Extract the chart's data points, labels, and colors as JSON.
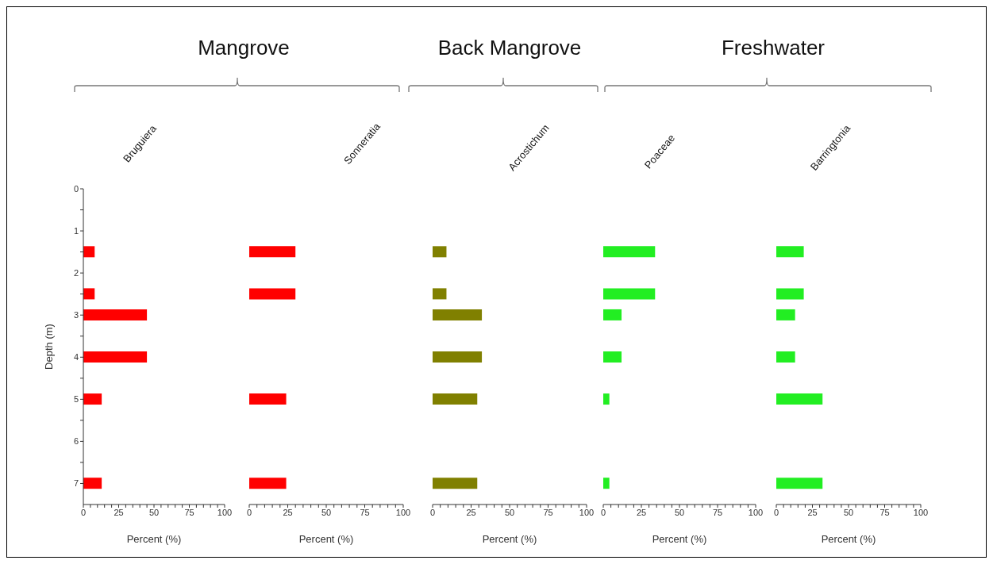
{
  "chart_data": [
    {
      "type": "bar",
      "orientation": "horizontal",
      "title": "Bruguiera",
      "annotations": [
        "Mangrove"
      ],
      "xlabel": "Percent (%)",
      "ylabel": "Depth (m)",
      "x": [
        1.5,
        2.5,
        3,
        4,
        5,
        7
      ],
      "values": [
        8,
        8,
        45,
        45,
        13,
        13
      ],
      "color": "#ff0000",
      "xlim": [
        0,
        100
      ],
      "xticks": [
        0,
        {
          "value": 5,
          "label": null
        },
        {
          "value": 10,
          "label": null
        },
        {
          "value": 15,
          "label": null
        },
        {
          "value": 20,
          "label": null
        },
        25,
        {
          "value": 30,
          "label": null
        },
        {
          "value": 35,
          "label": null
        },
        {
          "value": 40,
          "label": null
        },
        {
          "value": 45,
          "label": null
        },
        50,
        {
          "value": 55,
          "label": null
        },
        {
          "value": 60,
          "label": null
        },
        {
          "value": 65,
          "label": null
        },
        {
          "value": 70,
          "label": null
        },
        75,
        {
          "value": 80,
          "label": null
        },
        {
          "value": 85,
          "label": null
        },
        {
          "value": 90,
          "label": null
        },
        {
          "value": 95,
          "label": null
        },
        100
      ],
      "ylim": [
        7.5,
        0
      ],
      "yticks": [
        0,
        {
          "value": 0.5,
          "label": null
        },
        1,
        {
          "value": 1.5,
          "label": null
        },
        2,
        {
          "value": 2.5,
          "label": null
        },
        3,
        {
          "value": 3.5,
          "label": null
        },
        4,
        {
          "value": 4.5,
          "label": null
        },
        5,
        {
          "value": 5.5,
          "label": null
        },
        6,
        {
          "value": 6.5,
          "label": null
        },
        7
      ]
    },
    {
      "type": "bar",
      "orientation": "horizontal",
      "title": "Sonneratia",
      "xlabel": "Percent (%)",
      "x": [
        1.5,
        2.5,
        3,
        4,
        5,
        7
      ],
      "values": [
        30,
        30,
        0,
        0,
        24,
        24
      ],
      "color": "#ff0000",
      "xlim": [
        0,
        100
      ],
      "xticks": [
        0,
        {
          "value": 5,
          "label": null
        },
        {
          "value": 10,
          "label": null
        },
        {
          "value": 15,
          "label": null
        },
        {
          "value": 20,
          "label": null
        },
        25,
        {
          "value": 30,
          "label": null
        },
        {
          "value": 35,
          "label": null
        },
        {
          "value": 40,
          "label": null
        },
        {
          "value": 45,
          "label": null
        },
        50,
        {
          "value": 55,
          "label": null
        },
        {
          "value": 60,
          "label": null
        },
        {
          "value": 65,
          "label": null
        },
        {
          "value": 70,
          "label": null
        },
        75,
        {
          "value": 80,
          "label": null
        },
        {
          "value": 85,
          "label": null
        },
        {
          "value": 90,
          "label": null
        },
        {
          "value": 95,
          "label": null
        },
        100
      ],
      "ylim": [
        7.5,
        0
      ],
      "tick_labels": "x"
    },
    {
      "type": "bar",
      "orientation": "horizontal",
      "title": "Acrostichum",
      "annotations": [
        "Back Mangrove"
      ],
      "xlabel": "Percent (%)",
      "x": [
        1.5,
        2.5,
        3,
        4,
        5,
        7
      ],
      "values": [
        9,
        9,
        32,
        32,
        29,
        29
      ],
      "color": "#808000",
      "xlim": [
        0,
        100
      ],
      "xticks": [
        0,
        {
          "value": 5,
          "label": null
        },
        {
          "value": 10,
          "label": null
        },
        {
          "value": 15,
          "label": null
        },
        {
          "value": 20,
          "label": null
        },
        25,
        {
          "value": 30,
          "label": null
        },
        {
          "value": 35,
          "label": null
        },
        {
          "value": 40,
          "label": null
        },
        {
          "value": 45,
          "label": null
        },
        50,
        {
          "value": 55,
          "label": null
        },
        {
          "value": 60,
          "label": null
        },
        {
          "value": 65,
          "label": null
        },
        {
          "value": 70,
          "label": null
        },
        75,
        {
          "value": 80,
          "label": null
        },
        {
          "value": 85,
          "label": null
        },
        {
          "value": 90,
          "label": null
        },
        {
          "value": 95,
          "label": null
        },
        100
      ],
      "ylim": [
        7.5,
        0
      ],
      "tick_labels": "x"
    },
    {
      "type": "bar",
      "orientation": "horizontal",
      "title": "Poaceae",
      "annotations": [
        "Freshwater"
      ],
      "xlabel": "Percent (%)",
      "x": [
        1.5,
        2.5,
        3,
        4,
        5,
        7
      ],
      "values": [
        34,
        34,
        12,
        12,
        4,
        4
      ],
      "color": "#22ee22",
      "xlim": [
        0,
        100
      ],
      "xticks": [
        0,
        {
          "value": 5,
          "label": null
        },
        {
          "value": 10,
          "label": null
        },
        {
          "value": 15,
          "label": null
        },
        {
          "value": 20,
          "label": null
        },
        25,
        {
          "value": 30,
          "label": null
        },
        {
          "value": 35,
          "label": null
        },
        {
          "value": 40,
          "label": null
        },
        {
          "value": 45,
          "label": null
        },
        50,
        {
          "value": 55,
          "label": null
        },
        {
          "value": 60,
          "label": null
        },
        {
          "value": 65,
          "label": null
        },
        {
          "value": 70,
          "label": null
        },
        75,
        {
          "value": 80,
          "label": null
        },
        {
          "value": 85,
          "label": null
        },
        {
          "value": 90,
          "label": null
        },
        {
          "value": 95,
          "label": null
        },
        100
      ],
      "ylim": [
        7.5,
        0
      ],
      "tick_labels": "x"
    },
    {
      "type": "bar",
      "orientation": "horizontal",
      "title": "Barringtonia",
      "xlabel": "Percent (%)",
      "x": [
        1.5,
        2.5,
        3,
        4,
        5,
        7
      ],
      "values": [
        19,
        19,
        13,
        13,
        32,
        32
      ],
      "color": "#22ee22",
      "xlim": [
        0,
        100
      ],
      "xticks": [
        0,
        {
          "value": 5,
          "label": null
        },
        {
          "value": 10,
          "label": null
        },
        {
          "value": 15,
          "label": null
        },
        {
          "value": 20,
          "label": null
        },
        25,
        {
          "value": 30,
          "label": null
        },
        {
          "value": 35,
          "label": null
        },
        {
          "value": 40,
          "label": null
        },
        {
          "value": 45,
          "label": null
        },
        50,
        {
          "value": 55,
          "label": null
        },
        {
          "value": 60,
          "label": null
        },
        {
          "value": 65,
          "label": null
        },
        {
          "value": 70,
          "label": null
        },
        75,
        {
          "value": 80,
          "label": null
        },
        {
          "value": 85,
          "label": null
        },
        {
          "value": 90,
          "label": null
        },
        {
          "value": 95,
          "label": null
        },
        100
      ],
      "ylim": [
        7.5,
        0
      ],
      "tick_labels": "x"
    }
  ]
}
